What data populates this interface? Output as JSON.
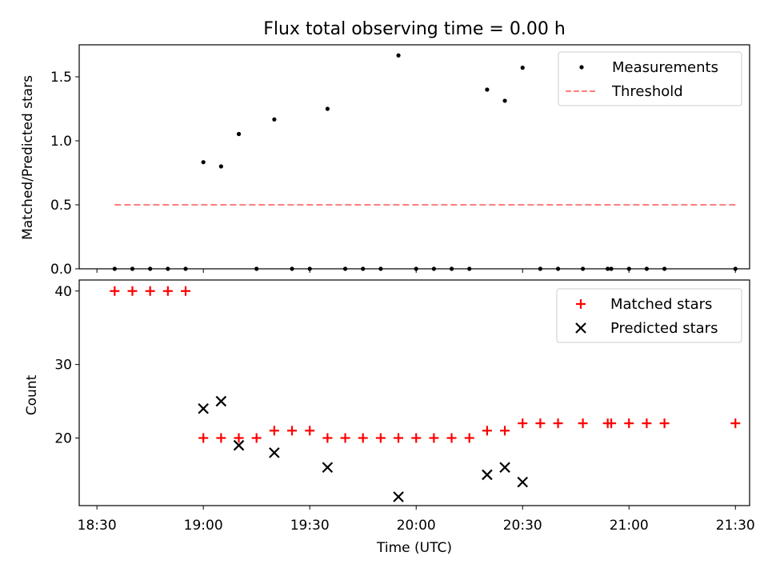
{
  "chart_data": [
    {
      "type": "scatter",
      "title": "Flux total observing time = 0.00 h",
      "xlabel": "",
      "ylabel": "Matched/Predicted stars",
      "ylim": [
        0,
        1.75
      ],
      "yticks": [
        0.0,
        0.5,
        1.0,
        1.5
      ],
      "ytick_labels": [
        "0.0",
        "0.5",
        "1.0",
        "1.5"
      ],
      "xlim": [
        "18:25",
        "21:34"
      ],
      "xticks": [
        "18:30",
        "19:00",
        "19:30",
        "20:00",
        "20:30",
        "21:00",
        "21:30"
      ],
      "legend": "top-right",
      "series": [
        {
          "name": "Measurements",
          "style": "points",
          "color": "#000000",
          "x": [
            "18:35",
            "18:40",
            "18:45",
            "18:50",
            "18:55",
            "19:00",
            "19:05",
            "19:10",
            "19:15",
            "19:20",
            "19:25",
            "19:30",
            "19:35",
            "19:40",
            "19:45",
            "19:50",
            "19:55",
            "20:00",
            "20:05",
            "20:10",
            "20:15",
            "20:20",
            "20:25",
            "20:30",
            "20:35",
            "20:40",
            "20:47",
            "20:54",
            "20:55",
            "21:00",
            "21:05",
            "21:10",
            "21:30"
          ],
          "y": [
            0,
            0,
            0,
            0,
            0,
            0.833,
            0.8,
            1.053,
            0,
            1.167,
            0,
            0,
            1.25,
            0,
            0,
            0,
            1.667,
            0,
            0,
            0,
            0,
            1.4,
            1.313,
            1.571,
            0,
            0,
            0,
            0,
            0,
            0,
            0,
            0,
            0
          ]
        },
        {
          "name": "Threshold",
          "style": "dashed-line",
          "color": "#ff7f7f",
          "x": [
            "18:35",
            "21:30"
          ],
          "y": [
            0.5,
            0.5
          ]
        }
      ]
    },
    {
      "type": "scatter",
      "title": "",
      "xlabel": "Time (UTC)",
      "ylabel": "Count",
      "ylim": [
        10.8,
        41.5
      ],
      "yticks": [
        20,
        30,
        40
      ],
      "ytick_labels": [
        "20",
        "30",
        "40"
      ],
      "xlim": [
        "18:25",
        "21:34"
      ],
      "xticks": [
        "18:30",
        "19:00",
        "19:30",
        "20:00",
        "20:30",
        "21:00",
        "21:30"
      ],
      "xtick_labels": [
        "18:30",
        "19:00",
        "19:30",
        "20:00",
        "20:30",
        "21:00",
        "21:30"
      ],
      "legend": "top-right",
      "series": [
        {
          "name": "Matched stars",
          "marker": "plus",
          "color": "#ff0000",
          "x": [
            "18:35",
            "18:40",
            "18:45",
            "18:50",
            "18:55",
            "19:00",
            "19:05",
            "19:10",
            "19:15",
            "19:20",
            "19:25",
            "19:30",
            "19:35",
            "19:40",
            "19:45",
            "19:50",
            "19:55",
            "20:00",
            "20:05",
            "20:10",
            "20:15",
            "20:20",
            "20:25",
            "20:30",
            "20:35",
            "20:40",
            "20:47",
            "20:54",
            "20:55",
            "21:00",
            "21:05",
            "21:10",
            "21:30"
          ],
          "y": [
            40,
            40,
            40,
            40,
            40,
            20,
            20,
            20,
            20,
            21,
            21,
            21,
            20,
            20,
            20,
            20,
            20,
            20,
            20,
            20,
            20,
            21,
            21,
            22,
            22,
            22,
            22,
            22,
            22,
            22,
            22,
            22,
            22
          ]
        },
        {
          "name": "Predicted stars",
          "marker": "x",
          "color": "#000000",
          "x": [
            "19:00",
            "19:05",
            "19:10",
            "19:20",
            "19:35",
            "19:55",
            "20:20",
            "20:25",
            "20:30"
          ],
          "y": [
            24,
            25,
            19,
            18,
            16,
            12,
            15,
            16,
            14
          ]
        }
      ]
    }
  ]
}
